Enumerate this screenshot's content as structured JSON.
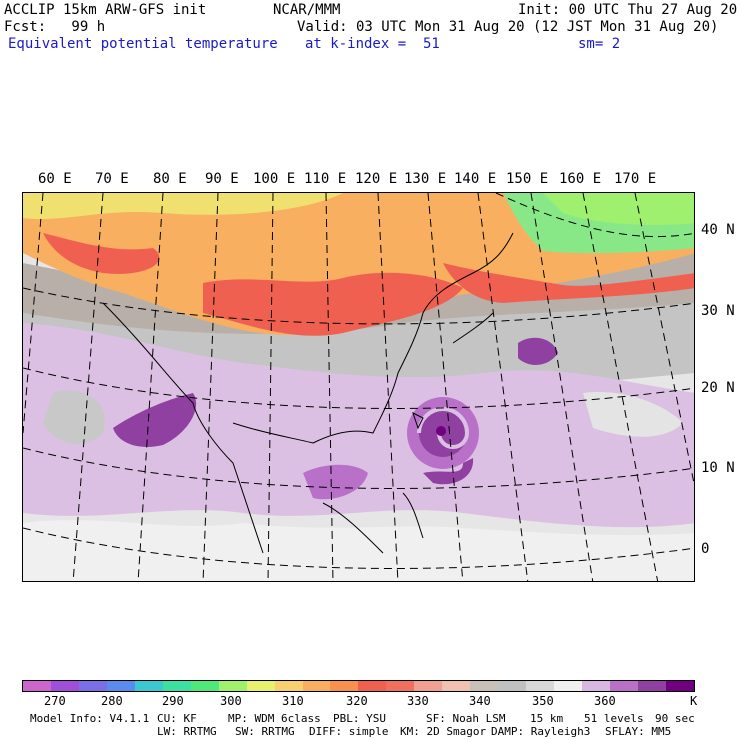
{
  "header": {
    "left1": "ACCLIP 15km ARW-GFS init",
    "center1": "NCAR/MMM",
    "right1": "Init: 00 UTC Thu 27 Aug 20",
    "left2": "Fcst:   99 h",
    "right2": "Valid: 03 UTC Mon 31 Aug 20 (12 JST Mon 31 Aug 20)",
    "field": "Equivalent potential temperature",
    "level": "at k-index =  51",
    "smooth": "sm= 2"
  },
  "lon_labels": [
    "60 E",
    "70 E",
    "80 E",
    "90 E",
    "100 E",
    "110 E",
    "120 E",
    "130 E",
    "140 E",
    "150 E",
    "160 E",
    "170 E"
  ],
  "lat_labels": [
    "40 N",
    "30 N",
    "20 N",
    "10 N",
    "0"
  ],
  "colorbar": {
    "colors": [
      "#cc66cc",
      "#a050d8",
      "#7c6ee8",
      "#5a8cf0",
      "#3cc8d0",
      "#3ce0a0",
      "#50e878",
      "#a0f070",
      "#e8f070",
      "#f8d070",
      "#f8b060",
      "#f89050",
      "#f06050",
      "#f07060",
      "#f0a090",
      "#f0c0b0",
      "#c8c0b8",
      "#c0c0c0",
      "#d8d8d8",
      "#f0f0f0",
      "#d8b8e0",
      "#b870c8",
      "#9040a0",
      "#700080"
    ],
    "ticks": [
      "270",
      "280",
      "290",
      "300",
      "310",
      "320",
      "330",
      "340",
      "350",
      "360"
    ],
    "unit": "K"
  },
  "footer": {
    "line1": [
      "Model Info: V4.1.1",
      "CU: KF",
      "MP: WDM 6class",
      "PBL: YSU",
      "SF: Noah LSM",
      "15 km",
      "51 levels",
      "90 sec"
    ],
    "line2": [
      "LW: RRTMG",
      "SW: RRTMG",
      "DIFF: simple",
      "KM: 2D Smagor",
      "DAMP: Rayleigh3",
      "SFLAY: MM5"
    ]
  }
}
